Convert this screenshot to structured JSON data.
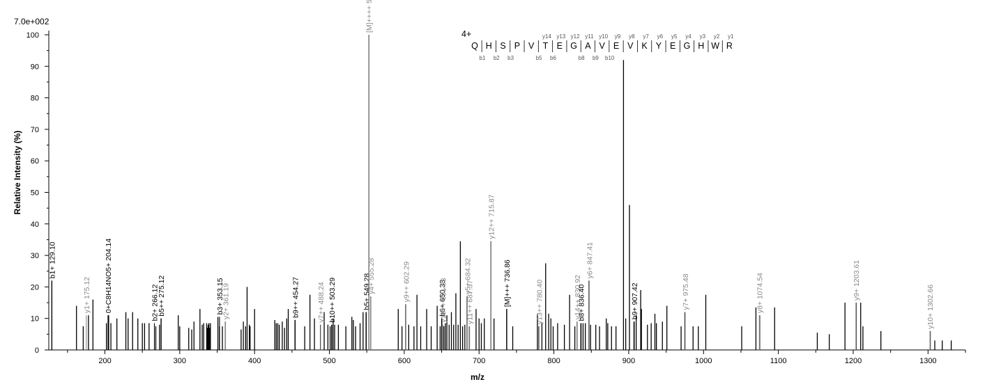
{
  "chart_data": {
    "type": "bar",
    "max_intensity_label": "7.0e+002",
    "xlabel": "m/z",
    "ylabel": "Relative   Intensity (%)",
    "xlim": [
      125,
      1350
    ],
    "ylim": [
      0,
      100
    ],
    "x_ticks": [
      200,
      300,
      400,
      500,
      600,
      700,
      800,
      900,
      1000,
      1100,
      1200,
      1300
    ],
    "y_ticks": [
      0,
      10,
      20,
      30,
      40,
      50,
      60,
      70,
      80,
      90,
      100
    ],
    "peaks": [
      [
        129.1,
        22
      ],
      [
        162,
        14
      ],
      [
        171,
        7.5
      ],
      [
        178,
        11
      ],
      [
        184,
        16
      ],
      [
        202,
        8.5
      ],
      [
        205,
        11
      ],
      [
        208,
        8.5
      ],
      [
        216,
        10
      ],
      [
        228,
        12
      ],
      [
        231,
        10
      ],
      [
        237,
        12
      ],
      [
        244,
        10
      ],
      [
        250,
        8.5
      ],
      [
        253,
        8.5
      ],
      [
        259,
        8.5
      ],
      [
        268,
        7.5
      ],
      [
        273,
        8
      ],
      [
        275,
        10
      ],
      [
        298,
        11
      ],
      [
        300,
        7.5
      ],
      [
        312,
        7
      ],
      [
        316,
        6.5
      ],
      [
        319,
        9
      ],
      [
        327,
        13
      ],
      [
        330,
        8
      ],
      [
        332,
        8.5
      ],
      [
        336,
        8.5
      ],
      [
        337,
        7
      ],
      [
        338,
        8
      ],
      [
        339,
        8.5
      ],
      [
        340,
        7
      ],
      [
        341,
        8.5
      ],
      [
        351,
        10.5
      ],
      [
        353,
        7.5
      ],
      [
        357,
        7.5
      ],
      [
        361,
        9
      ],
      [
        382,
        6.5
      ],
      [
        385,
        9
      ],
      [
        388,
        7.5
      ],
      [
        390,
        20
      ],
      [
        393,
        8
      ],
      [
        394,
        7.5
      ],
      [
        400,
        13
      ],
      [
        427,
        9.5
      ],
      [
        429,
        8.5
      ],
      [
        431,
        8.5
      ],
      [
        433,
        8
      ],
      [
        437,
        9
      ],
      [
        440,
        7
      ],
      [
        443,
        10
      ],
      [
        445,
        13
      ],
      [
        454,
        9.5
      ],
      [
        467,
        7.5
      ],
      [
        474,
        17.5
      ],
      [
        480,
        10
      ],
      [
        488,
        8
      ],
      [
        493,
        12
      ],
      [
        498,
        8
      ],
      [
        501,
        7.5
      ],
      [
        503,
        8
      ],
      [
        505,
        10
      ],
      [
        507,
        8
      ],
      [
        512,
        8
      ],
      [
        522,
        7.5
      ],
      [
        530,
        10.5
      ],
      [
        532,
        9.5
      ],
      [
        535,
        7.5
      ],
      [
        541,
        8.5
      ],
      [
        545,
        12
      ],
      [
        549,
        12
      ],
      [
        552.76,
        100
      ],
      [
        555.28,
        17
      ],
      [
        592,
        13
      ],
      [
        597,
        7.5
      ],
      [
        602,
        14.5
      ],
      [
        606,
        8
      ],
      [
        613,
        7.5
      ],
      [
        617,
        17.5
      ],
      [
        622,
        7.5
      ],
      [
        630,
        13
      ],
      [
        636,
        7.5
      ],
      [
        644,
        14
      ],
      [
        648,
        7.5
      ],
      [
        650,
        10
      ],
      [
        653,
        7.5
      ],
      [
        655,
        8.5
      ],
      [
        657,
        11
      ],
      [
        660,
        8
      ],
      [
        663,
        12
      ],
      [
        666,
        8
      ],
      [
        669,
        18
      ],
      [
        672,
        8
      ],
      [
        675,
        34.5
      ],
      [
        678,
        7.5
      ],
      [
        681,
        8
      ],
      [
        684,
        17
      ],
      [
        687,
        7.5
      ],
      [
        696,
        13
      ],
      [
        700,
        10
      ],
      [
        703,
        8.5
      ],
      [
        707,
        10
      ],
      [
        715.87,
        34.5
      ],
      [
        720,
        10
      ],
      [
        737,
        13
      ],
      [
        745,
        7.5
      ],
      [
        778,
        11.5
      ],
      [
        780,
        7.5
      ],
      [
        784,
        8.5
      ],
      [
        789,
        27.5
      ],
      [
        793,
        11.5
      ],
      [
        796,
        10
      ],
      [
        799,
        7.5
      ],
      [
        805,
        8.5
      ],
      [
        814,
        8
      ],
      [
        821,
        17.5
      ],
      [
        828,
        7.5
      ],
      [
        831,
        9
      ],
      [
        836,
        8.5
      ],
      [
        839,
        8.5
      ],
      [
        842,
        8.5
      ],
      [
        847,
        22
      ],
      [
        849,
        8
      ],
      [
        856,
        8
      ],
      [
        861,
        7.5
      ],
      [
        870,
        10
      ],
      [
        872,
        8.5
      ],
      [
        877,
        7.5
      ],
      [
        883,
        7.5
      ],
      [
        893,
        92
      ],
      [
        896,
        10
      ],
      [
        901,
        46
      ],
      [
        907,
        9
      ],
      [
        910,
        11
      ],
      [
        916,
        19
      ],
      [
        917,
        13
      ],
      [
        925,
        8
      ],
      [
        930,
        8.5
      ],
      [
        935,
        11.5
      ],
      [
        937,
        8.5
      ],
      [
        945,
        9
      ],
      [
        951,
        14
      ],
      [
        970,
        7.5
      ],
      [
        975,
        12
      ],
      [
        986,
        7.5
      ],
      [
        993,
        7.5
      ],
      [
        1003,
        17.5
      ],
      [
        1051,
        7.5
      ],
      [
        1070,
        13.5
      ],
      [
        1075,
        11
      ],
      [
        1095,
        13.5
      ],
      [
        1152,
        5.5
      ],
      [
        1168,
        5
      ],
      [
        1189,
        15
      ],
      [
        1204,
        15
      ],
      [
        1210,
        15
      ],
      [
        1213,
        7.5
      ],
      [
        1237,
        6
      ],
      [
        1303,
        6
      ],
      [
        1309,
        3
      ],
      [
        1319,
        3
      ],
      [
        1331,
        3
      ]
    ],
    "annotations": [
      {
        "label": "b1+ 129.10",
        "mz": 129.1,
        "y": 22,
        "color": "dark"
      },
      {
        "label": "y1+ 175.12",
        "mz": 175.12,
        "y": 11,
        "color": "grey"
      },
      {
        "label": "0+C8H14NO5+ 204.14",
        "mz": 204.14,
        "y": 11,
        "color": "dark"
      },
      {
        "label": "b2+ 266.12",
        "mz": 266.12,
        "y": 8.5,
        "color": "dark"
      },
      {
        "label": "b5++ 275.12",
        "mz": 275.12,
        "y": 10,
        "color": "dark"
      },
      {
        "label": "b3+ 353.15",
        "mz": 353.15,
        "y": 10.5,
        "color": "dark"
      },
      {
        "label": "y2+ 361.19",
        "mz": 361.19,
        "y": 9,
        "color": "grey"
      },
      {
        "label": "b9++ 454.27",
        "mz": 454.27,
        "y": 9.5,
        "color": "dark"
      },
      {
        "label": "y7++ 488.24",
        "mz": 488.24,
        "y": 8,
        "color": "grey"
      },
      {
        "label": "b10++ 503.29",
        "mz": 503.29,
        "y": 8,
        "color": "dark"
      },
      {
        "label": "b5+ 549.28",
        "mz": 549.28,
        "y": 12,
        "color": "dark"
      },
      {
        "label": "y4+ 555.28",
        "mz": 555.28,
        "y": 17,
        "color": "grey"
      },
      {
        "label": "[M]++++ 552.76",
        "mz": 552.76,
        "y": 100,
        "color": "grey"
      },
      {
        "label": "y9++ 602.29",
        "mz": 602.29,
        "y": 14.5,
        "color": "grey"
      },
      {
        "label": "b6+ 650.33",
        "mz": 650.33,
        "y": 10,
        "color": "dark"
      },
      {
        "label": "y10++ 651.83",
        "mz": 651.83,
        "y": 8,
        "color": "grey"
      },
      {
        "label": "y11++ 687.37",
        "mz": 687.37,
        "y": 7.5,
        "color": "grey"
      },
      {
        "label": "y5+ 684.32",
        "mz": 684.32,
        "y": 17,
        "color": "grey"
      },
      {
        "label": "y12++ 715.87",
        "mz": 715.87,
        "y": 34.5,
        "color": "grey"
      },
      {
        "label": "[M]+++ 736.86",
        "mz": 736.86,
        "y": 13,
        "color": "dark"
      },
      {
        "label": "y13++ 780.40",
        "mz": 780.4,
        "y": 7.5,
        "color": "grey"
      },
      {
        "label": "y14++ 830.92",
        "mz": 830.92,
        "y": 9,
        "color": "grey"
      },
      {
        "label": "b8+ 836.40",
        "mz": 836.4,
        "y": 8.5,
        "color": "dark"
      },
      {
        "label": "y6+ 847.41",
        "mz": 847.41,
        "y": 22,
        "color": "grey"
      },
      {
        "label": "b9+ 907.42",
        "mz": 907.42,
        "y": 9,
        "color": "dark"
      },
      {
        "label": "y7+ 975.48",
        "mz": 975.48,
        "y": 12,
        "color": "grey"
      },
      {
        "label": "y8+ 1074.54",
        "mz": 1074.54,
        "y": 11,
        "color": "grey"
      },
      {
        "label": "y9+ 1203.61",
        "mz": 1203.61,
        "y": 15,
        "color": "grey"
      },
      {
        "label": "y10+ 1302.66",
        "mz": 1302.66,
        "y": 6,
        "color": "grey"
      }
    ],
    "sequence": {
      "charge": "4+",
      "residues": [
        "Q",
        "H",
        "S",
        "P",
        "V",
        "T",
        "E",
        "G",
        "A",
        "V",
        "E",
        "V",
        "K",
        "Y",
        "E",
        "G",
        "H",
        "W",
        "R"
      ],
      "y_ions": [
        "y14",
        "y13",
        "y12",
        "y11",
        "y10",
        "y9",
        "y8",
        "y7",
        "y6",
        "y5",
        "y4",
        "y3",
        "y2",
        "y1"
      ],
      "b_ions": [
        "b1",
        "b2",
        "b3",
        "b5",
        "b6",
        "b8",
        "b9",
        "b10"
      ]
    }
  }
}
